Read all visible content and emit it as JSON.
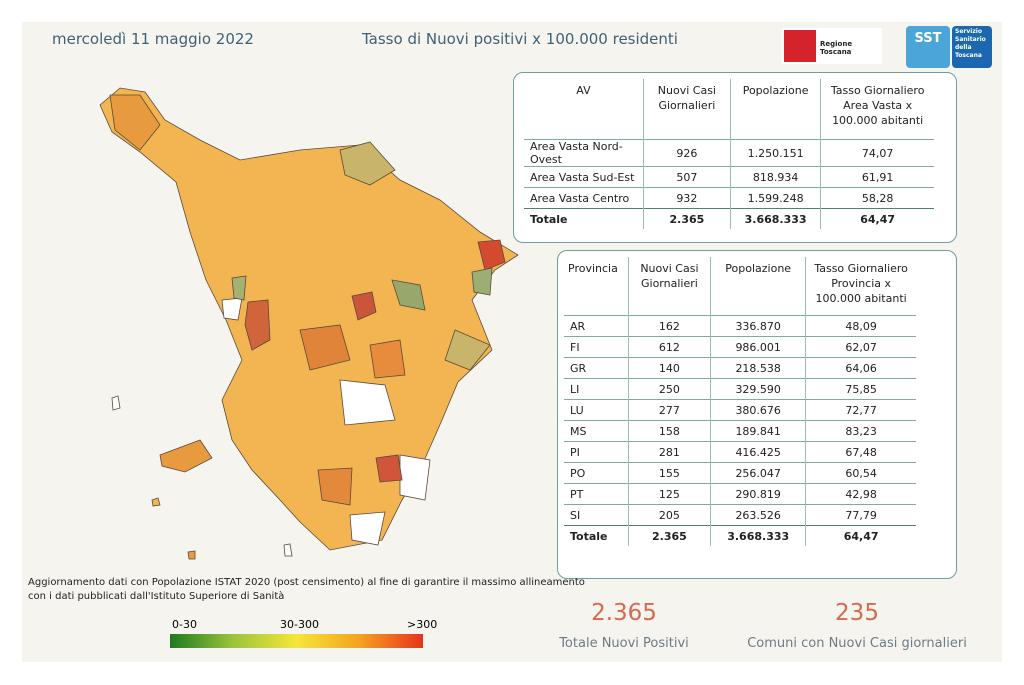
{
  "header": {
    "date": "mercoledì 11 maggio 2022",
    "title": "Tasso di Nuovi positivi x 100.000 residenti",
    "logo_region": "Regione Toscana",
    "logo_sst_mark": "SST",
    "logo_sst_text": [
      "Servizio",
      "Sanitario",
      "della",
      "Toscana"
    ]
  },
  "av_table": {
    "columns": [
      "AV",
      "Nuovi Casi Giornalieri",
      "Popolazione",
      "Tasso Giornaliero Area Vasta x 100.000 abitanti"
    ],
    "rows": [
      [
        "Area Vasta Nord-Ovest",
        "926",
        "1.250.151",
        "74,07"
      ],
      [
        "Area Vasta Sud-Est",
        "507",
        "818.934",
        "61,91"
      ],
      [
        "Area Vasta Centro",
        "932",
        "1.599.248",
        "58,28"
      ],
      [
        "Totale",
        "2.365",
        "3.668.333",
        "64,47"
      ]
    ]
  },
  "prov_table": {
    "columns": [
      "Provincia",
      "Nuovi Casi Giornalieri",
      "Popolazione",
      "Tasso Giornaliero Provincia x 100.000 abitanti"
    ],
    "rows": [
      [
        "AR",
        "162",
        "336.870",
        "48,09"
      ],
      [
        "FI",
        "612",
        "986.001",
        "62,07"
      ],
      [
        "GR",
        "140",
        "218.538",
        "64,06"
      ],
      [
        "LI",
        "250",
        "329.590",
        "75,85"
      ],
      [
        "LU",
        "277",
        "380.676",
        "72,77"
      ],
      [
        "MS",
        "158",
        "189.841",
        "83,23"
      ],
      [
        "PI",
        "281",
        "416.425",
        "67,48"
      ],
      [
        "PO",
        "155",
        "256.047",
        "60,54"
      ],
      [
        "PT",
        "125",
        "290.819",
        "42,98"
      ],
      [
        "SI",
        "205",
        "263.526",
        "77,79"
      ],
      [
        "Totale",
        "2.365",
        "3.668.333",
        "64,47"
      ]
    ]
  },
  "note": "Aggiornamento dati con Popolazione ISTAT 2020 (post censimento) al fine di garantire il massimo allineamento con i dati pubblicati dall'Istituto Superiore di Sanità",
  "legend": {
    "labels": [
      "0-30",
      "30-300",
      ">300"
    ]
  },
  "kpis": [
    {
      "value": "2.365",
      "label": "Totale Nuovi Positivi"
    },
    {
      "value": "235",
      "label": "Comuni con Nuovi Casi giornalieri"
    }
  ]
}
